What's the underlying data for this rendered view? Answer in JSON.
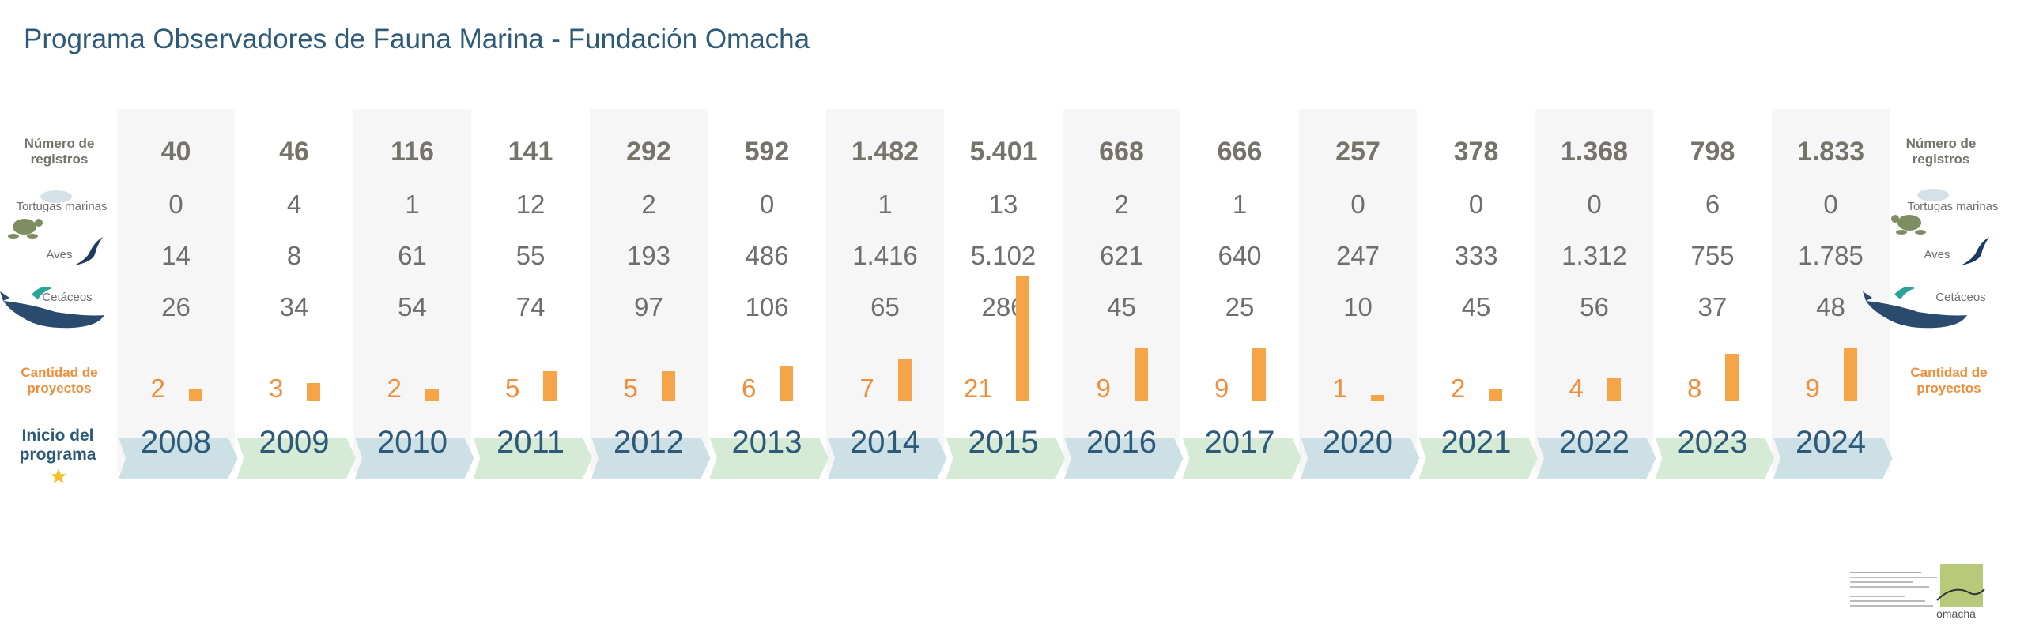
{
  "title": "Programa Observadores de Fauna Marina - Fundación Omacha",
  "labels": {
    "registros": "Número de registros",
    "tortugas": "Tortugas marinas",
    "aves": "Aves",
    "cetaceos": "Cetáceos",
    "proyectos": "Cantidad de proyectos",
    "inicio": "Inicio del programa"
  },
  "colors": {
    "title": "#2e5a7a",
    "projects": "#ef8e3b",
    "bar": "#f5a548",
    "band_blue": "#cde0e6",
    "band_green": "#d5ebd6",
    "star": "#f6c026"
  },
  "icons": [
    "turtle-icon",
    "bird-icon",
    "whale-icon",
    "star-icon",
    "omacha-logo"
  ],
  "footer": {
    "logo_text": "omacha"
  },
  "chart_data": {
    "type": "table",
    "years": [
      "2008",
      "2009",
      "2010",
      "2011",
      "2012",
      "2013",
      "2014",
      "2015",
      "2016",
      "2017",
      "2020",
      "2021",
      "2022",
      "2023",
      "2024"
    ],
    "registros": [
      "40",
      "46",
      "116",
      "141",
      "292",
      "592",
      "1.482",
      "5.401",
      "668",
      "666",
      "257",
      "378",
      "1.368",
      "798",
      "1.833"
    ],
    "tortugas": [
      "0",
      "4",
      "1",
      "12",
      "2",
      "0",
      "1",
      "13",
      "2",
      "1",
      "0",
      "0",
      "0",
      "6",
      "0"
    ],
    "aves": [
      "14",
      "8",
      "61",
      "55",
      "193",
      "486",
      "1.416",
      "5.102",
      "621",
      "640",
      "247",
      "333",
      "1.312",
      "755",
      "1.785"
    ],
    "cetaceos": [
      "26",
      "34",
      "54",
      "74",
      "97",
      "106",
      "65",
      "286",
      "45",
      "25",
      "10",
      "45",
      "56",
      "37",
      "48"
    ],
    "proyectos": [
      2,
      3,
      2,
      5,
      5,
      6,
      7,
      21,
      9,
      9,
      1,
      2,
      4,
      8,
      9
    ]
  }
}
